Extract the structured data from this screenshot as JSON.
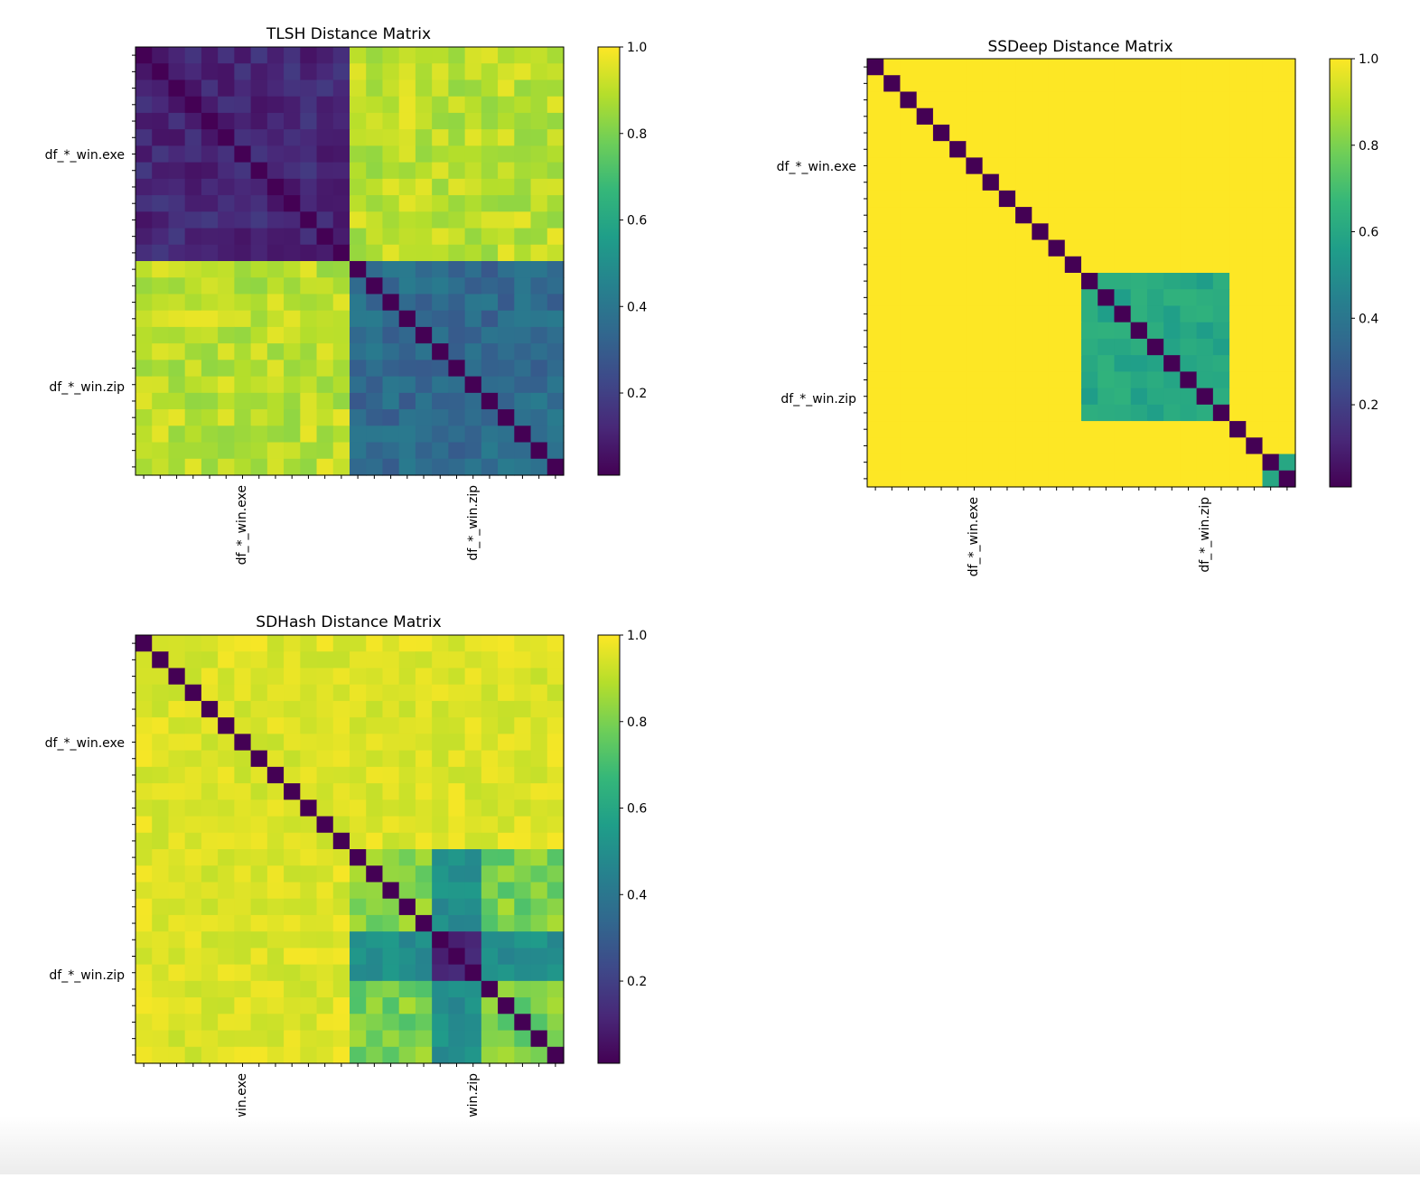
{
  "colormap": {
    "name": "viridis",
    "stops": [
      "#440154",
      "#482878",
      "#3e4989",
      "#31688e",
      "#26828e",
      "#1f9e89",
      "#35b779",
      "#6ece58",
      "#b5de2b",
      "#fde725"
    ]
  },
  "chart_data": [
    {
      "type": "heatmap",
      "title": "TLSH Distance Matrix",
      "n": 26,
      "block_labels": [
        "df_*_win.exe",
        "df_*_win.zip"
      ],
      "group_sizes": [
        13,
        13
      ],
      "clim": [
        0.01,
        1.0
      ],
      "colorbar_ticks": [
        "0.2",
        "0.4",
        "0.6",
        "0.8",
        "1.0"
      ],
      "colorbar_tick_values": [
        0.2,
        0.4,
        0.6,
        0.8,
        1.0
      ],
      "block_means": {
        "within_exe": 0.12,
        "cross": 0.9,
        "within_zip": 0.35
      },
      "diagonal": 0.01
    },
    {
      "type": "heatmap",
      "title": "SSDeep Distance Matrix",
      "n": 26,
      "block_labels": [
        "df_*_win.exe",
        "df_*_win.zip"
      ],
      "group_sizes": [
        13,
        13
      ],
      "clim": [
        0.01,
        1.0
      ],
      "colorbar_ticks": [
        "0.2",
        "0.4",
        "0.6",
        "0.8",
        "1.0"
      ],
      "colorbar_tick_values": [
        0.2,
        0.4,
        0.6,
        0.8,
        1.0
      ],
      "default_value": 1.0,
      "similar_group_rows": [
        13,
        22
      ],
      "similar_group_value": 0.6,
      "last_pair_value": 0.6,
      "diagonal": 0.01
    },
    {
      "type": "heatmap",
      "title": "SDHash Distance Matrix",
      "n": 26,
      "block_labels": [
        "df_*_win.exe",
        "df_*_win.zip"
      ],
      "group_sizes": [
        13,
        13
      ],
      "clim": [
        0.01,
        1.0
      ],
      "colorbar_ticks": [
        "0.2",
        "0.4",
        "0.6",
        "0.8",
        "1.0"
      ],
      "colorbar_tick_values": [
        0.2,
        0.4,
        0.6,
        0.8,
        1.0
      ],
      "block_means": {
        "within_exe": 0.95,
        "cross": 0.95,
        "zip_a": 0.8,
        "zip_b": 0.1,
        "zip_ab": 0.5
      },
      "zip_subgroup_rows": [
        [
          13,
          18
        ],
        [
          18,
          21
        ],
        [
          21,
          26
        ]
      ],
      "diagonal": 0.01
    }
  ]
}
